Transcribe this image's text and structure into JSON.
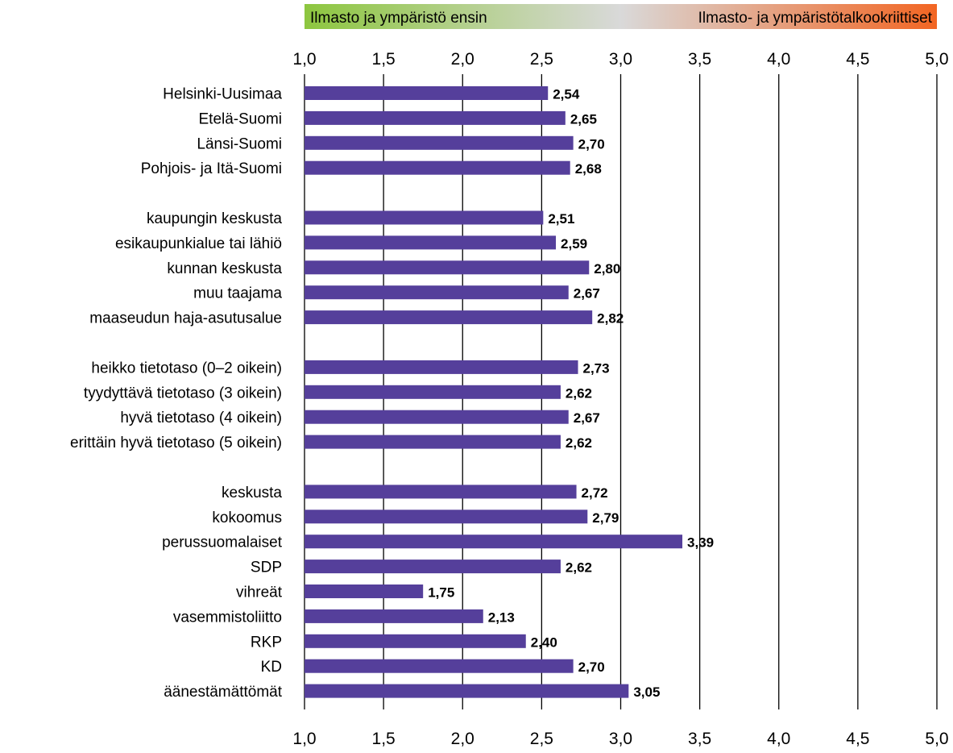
{
  "chart_data": {
    "type": "bar",
    "orientation": "horizontal",
    "legend": {
      "left_label": "Ilmasto ja ympäristö ensin",
      "right_label": "Ilmasto- ja ympäristötalkookriittiset",
      "gradient_colors": [
        "#8dc63f",
        "#d9d9d9",
        "#f26522"
      ]
    },
    "xlim": [
      1.0,
      5.0
    ],
    "ticks": [
      "1,0",
      "1,5",
      "2,0",
      "2,5",
      "3,0",
      "3,5",
      "4,0",
      "4,5",
      "5,0"
    ],
    "tick_values": [
      1.0,
      1.5,
      2.0,
      2.5,
      3.0,
      3.5,
      4.0,
      4.5,
      5.0
    ],
    "bar_color": "#553f9b",
    "groups": [
      {
        "categories": [
          "Helsinki-Uusimaa",
          "Etelä-Suomi",
          "Länsi-Suomi",
          "Pohjois- ja Itä-Suomi"
        ],
        "values": [
          2.54,
          2.65,
          2.7,
          2.68
        ],
        "value_labels": [
          "2,54",
          "2,65",
          "2,70",
          "2,68"
        ]
      },
      {
        "categories": [
          "kaupungin keskusta",
          "esikaupunkialue tai lähiö",
          "kunnan keskusta",
          "muu taajama",
          "maaseudun haja-asutusalue"
        ],
        "values": [
          2.51,
          2.59,
          2.8,
          2.67,
          2.82
        ],
        "value_labels": [
          "2,51",
          "2,59",
          "2,80",
          "2,67",
          "2,82"
        ]
      },
      {
        "categories": [
          "heikko tietotaso (0–2 oikein)",
          "tyydyttävä tietotaso (3 oikein)",
          "hyvä tietotaso (4 oikein)",
          "erittäin hyvä tietotaso (5 oikein)"
        ],
        "values": [
          2.73,
          2.62,
          2.67,
          2.62
        ],
        "value_labels": [
          "2,73",
          "2,62",
          "2,67",
          "2,62"
        ]
      },
      {
        "categories": [
          "keskusta",
          "kokoomus",
          "perussuomalaiset",
          "SDP",
          "vihreät",
          "vasemmistoliitto",
          "RKP",
          "KD",
          "äänestämättömät"
        ],
        "values": [
          2.72,
          2.79,
          3.39,
          2.62,
          1.75,
          2.13,
          2.4,
          2.7,
          3.05
        ],
        "value_labels": [
          "2,72",
          "2,79",
          "3,39",
          "2,62",
          "1,75",
          "2,13",
          "2,40",
          "2,70",
          "3,05"
        ]
      }
    ]
  }
}
